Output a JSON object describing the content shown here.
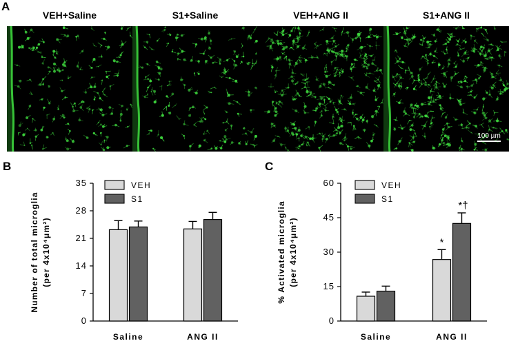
{
  "panels": {
    "a_letter": "A",
    "b_letter": "B",
    "c_letter": "C"
  },
  "micrographs": [
    {
      "title": "VEH+Saline",
      "density": "low",
      "has_edge": true
    },
    {
      "title": "S1+Saline",
      "density": "low",
      "has_edge": true
    },
    {
      "title": "VEH+ANG II",
      "density": "high",
      "has_edge": false
    },
    {
      "title": "S1+ANG II",
      "density": "high",
      "has_edge": true
    }
  ],
  "scale_bar_label": "100 µm",
  "colors": {
    "veh": "#d9d9d9",
    "s1": "#616161",
    "microglia": "#3cd23c",
    "background": "#000000"
  },
  "chart_data": [
    {
      "type": "bar",
      "panel": "B",
      "categories": [
        "Saline",
        "ANG II"
      ],
      "series": [
        {
          "name": "VEH",
          "values": [
            23.2,
            23.4
          ],
          "errors": [
            2.3,
            1.9
          ]
        },
        {
          "name": "S1",
          "values": [
            23.9,
            25.8
          ],
          "errors": [
            1.5,
            1.8
          ]
        }
      ],
      "ylabel_line1": "Number of total microglia",
      "ylabel_line2": "(per 4x10⁴μm²)",
      "ylim": [
        0,
        35
      ],
      "yticks": [
        0,
        7,
        14,
        21,
        28,
        35
      ],
      "legend_position": "top-left",
      "annotations": [
        [
          "",
          ""
        ],
        [
          "",
          ""
        ]
      ]
    },
    {
      "type": "bar",
      "panel": "C",
      "categories": [
        "Saline",
        "ANG II"
      ],
      "series": [
        {
          "name": "VEH",
          "values": [
            10.8,
            26.8
          ],
          "errors": [
            1.8,
            4.3
          ]
        },
        {
          "name": "S1",
          "values": [
            13.0,
            42.5
          ],
          "errors": [
            2.2,
            4.6
          ]
        }
      ],
      "ylabel_line1": "% Activated microglia",
      "ylabel_line2": "(per 4x10⁴μm²)",
      "ylim": [
        0,
        60
      ],
      "yticks": [
        0,
        15,
        30,
        45,
        60
      ],
      "legend_position": "top-left",
      "annotations": [
        [
          "",
          ""
        ],
        [
          "*",
          "*†"
        ]
      ]
    }
  ]
}
